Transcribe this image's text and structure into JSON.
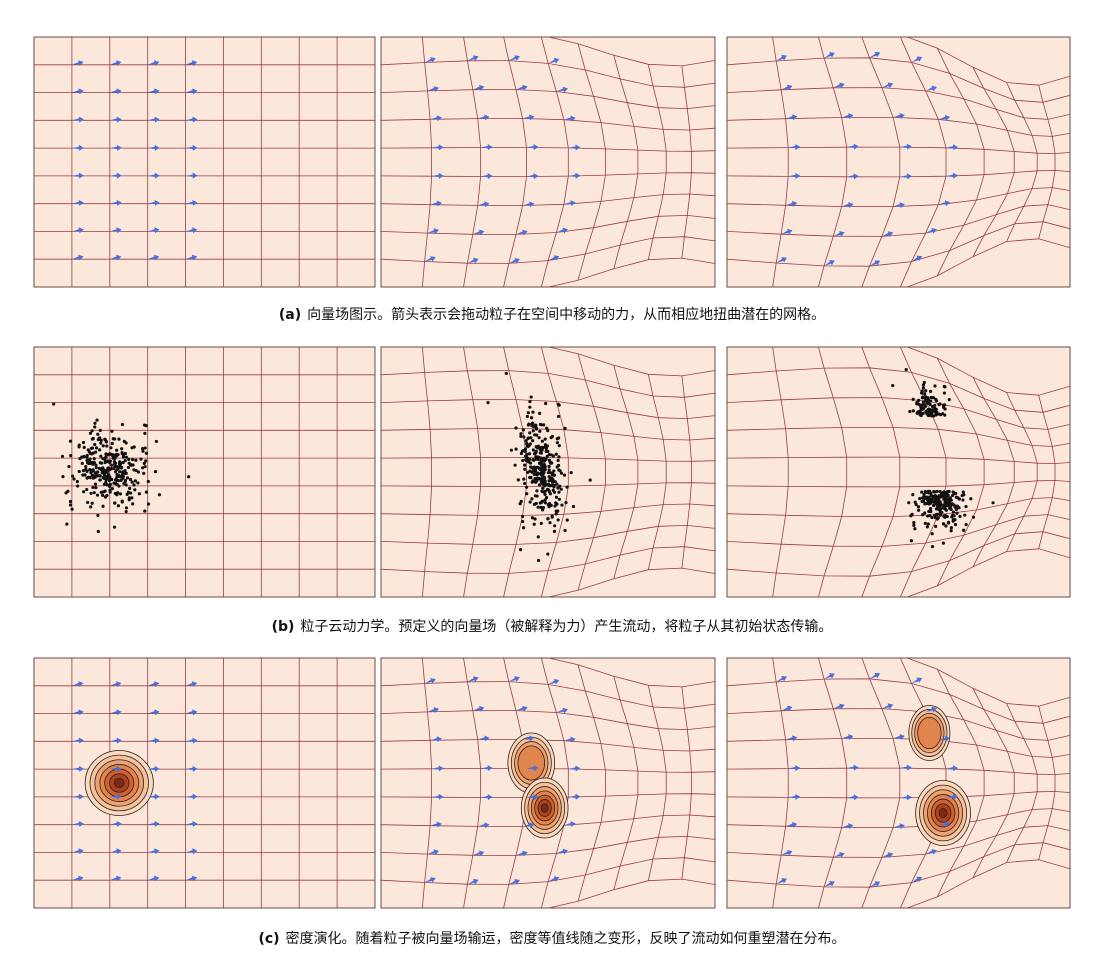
{
  "figure": {
    "captions": [
      {
        "label": "(a)",
        "text": "向量场图示。箭头表示会拖动粒子在空间中移动的力，从而相应地扭曲潜在的网格。"
      },
      {
        "label": "(b)",
        "text": "粒子云动力学。预定义的向量场（被解释为力）产生流动，将粒子从其初始状态传输。"
      },
      {
        "label": "(c)",
        "text": "密度演化。随着粒子被向量场输运，密度等值线随之变形，反映了流动如何重塑潜在分布。"
      }
    ]
  }
}
